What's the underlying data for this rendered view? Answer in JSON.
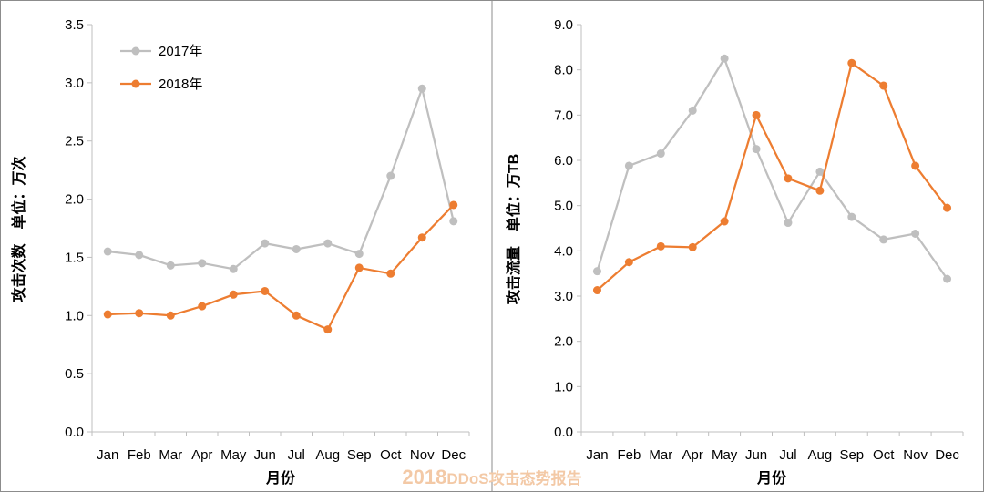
{
  "watermark": {
    "year": "2018",
    "text": "DDoS攻击态势报告",
    "color": "#f3c9a6"
  },
  "colors": {
    "s2017": "#bfbfbf",
    "s2018": "#ed7d31",
    "axis": "#bfbfbf",
    "border": "#8c8c8c"
  },
  "chart_data": [
    {
      "type": "line",
      "title": "",
      "xlabel": "月份",
      "ylabel": "攻击次数　单位：万次",
      "ylim": [
        0,
        3.5
      ],
      "yticks": [
        "0.0",
        "0.5",
        "1.0",
        "1.5",
        "2.0",
        "2.5",
        "3.0",
        "3.5"
      ],
      "categories": [
        "Jan",
        "Feb",
        "Mar",
        "Apr",
        "May",
        "Jun",
        "Jul",
        "Aug",
        "Sep",
        "Oct",
        "Nov",
        "Dec"
      ],
      "grid": false,
      "legend": "top-left",
      "series": [
        {
          "name": "2017年",
          "color": "#bfbfbf",
          "values": [
            1.55,
            1.52,
            1.43,
            1.45,
            1.4,
            1.62,
            1.57,
            1.62,
            1.53,
            2.2,
            2.95,
            1.81
          ]
        },
        {
          "name": "2018年",
          "color": "#ed7d31",
          "values": [
            1.01,
            1.02,
            1.0,
            1.08,
            1.18,
            1.21,
            1.0,
            0.88,
            1.41,
            1.36,
            1.67,
            1.95
          ]
        }
      ]
    },
    {
      "type": "line",
      "title": "",
      "xlabel": "月份",
      "ylabel": "攻击流量　单位：万TB",
      "ylim": [
        0,
        9
      ],
      "yticks": [
        "0.0",
        "1.0",
        "2.0",
        "3.0",
        "4.0",
        "5.0",
        "6.0",
        "7.0",
        "8.0",
        "9.0"
      ],
      "categories": [
        "Jan",
        "Feb",
        "Mar",
        "Apr",
        "May",
        "Jun",
        "Jul",
        "Aug",
        "Sep",
        "Oct",
        "Nov",
        "Dec"
      ],
      "grid": false,
      "legend": "none",
      "series": [
        {
          "name": "",
          "color": "#bfbfbf",
          "values": [
            3.55,
            5.88,
            6.15,
            7.1,
            8.25,
            6.25,
            4.62,
            5.75,
            4.75,
            4.25,
            4.38,
            3.38
          ]
        },
        {
          "name": "",
          "color": "#ed7d31",
          "values": [
            3.13,
            3.75,
            4.1,
            4.08,
            4.65,
            7.0,
            5.6,
            5.33,
            8.15,
            7.65,
            5.88,
            4.95
          ]
        }
      ]
    }
  ]
}
